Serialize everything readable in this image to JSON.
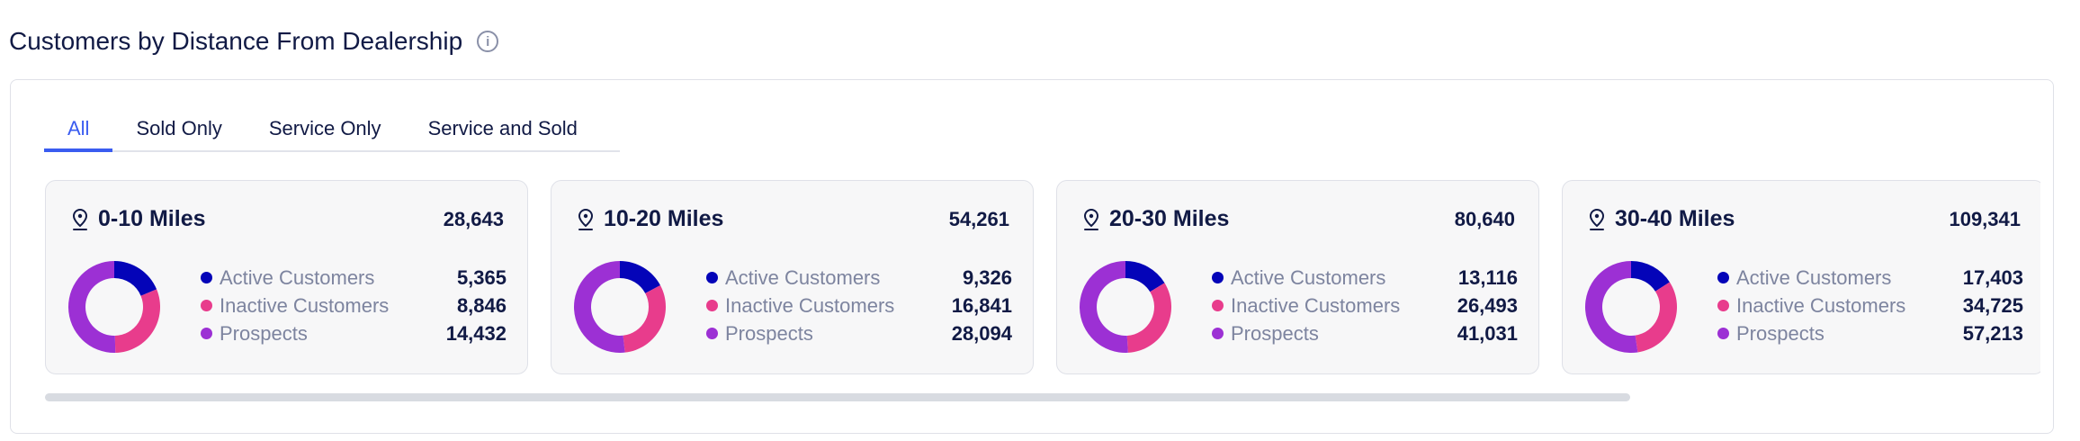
{
  "title": "Customers by Distance From Dealership",
  "tabs": [
    "All",
    "Sold Only",
    "Service Only",
    "Service and Sold"
  ],
  "active_tab": "All",
  "legend_labels": [
    "Active Customers",
    "Inactive Customers",
    "Prospects"
  ],
  "colors": {
    "active": "#0404b8",
    "inactive": "#e83c8c",
    "prospects": "#9c30d4",
    "accent": "#3a5cf0"
  },
  "cards": [
    {
      "label": "0-10 Miles",
      "total": "28,643",
      "values": [
        "5,365",
        "8,846",
        "14,432"
      ]
    },
    {
      "label": "10-20 Miles",
      "total": "54,261",
      "values": [
        "9,326",
        "16,841",
        "28,094"
      ]
    },
    {
      "label": "20-30 Miles",
      "total": "80,640",
      "values": [
        "13,116",
        "26,493",
        "41,031"
      ]
    },
    {
      "label": "30-40 Miles",
      "total": "109,341",
      "values": [
        "17,403",
        "34,725",
        "57,213"
      ]
    }
  ]
}
